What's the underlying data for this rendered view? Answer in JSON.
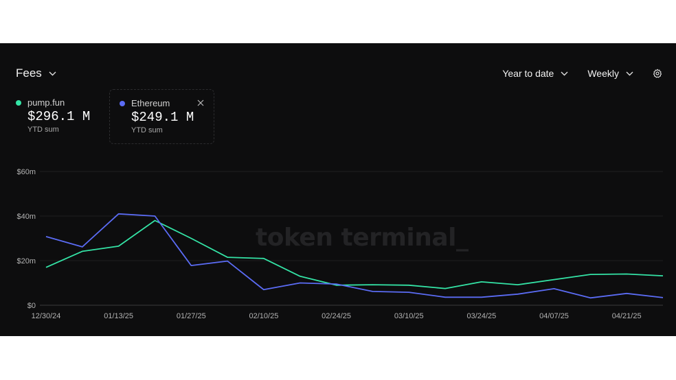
{
  "header": {
    "title": "Fees",
    "range_label": "Year to date",
    "interval_label": "Weekly"
  },
  "metrics": [
    {
      "name": "pump.fun",
      "value": "$296.1 M",
      "caption": "YTD sum",
      "color": "#34e4a6"
    },
    {
      "name": "Ethereum",
      "value": "$249.1 M",
      "caption": "YTD sum",
      "color": "#5b6cf5"
    }
  ],
  "watermark": "token terminal_",
  "icons": {
    "title_chevron": "chevron-down-icon",
    "settings": "gear-icon",
    "remove_series": "close-icon"
  },
  "chart_data": {
    "type": "line",
    "x": [
      "12/30/24",
      "01/06/25",
      "01/13/25",
      "01/20/25",
      "01/27/25",
      "02/03/25",
      "02/10/25",
      "02/17/25",
      "02/24/25",
      "03/03/25",
      "03/10/25",
      "03/17/25",
      "03/24/25",
      "03/31/25",
      "04/07/25",
      "04/14/25",
      "04/21/25",
      "04/28/25"
    ],
    "x_tick_labels": [
      "12/30/24",
      "01/13/25",
      "01/27/25",
      "02/10/25",
      "02/24/25",
      "03/10/25",
      "03/24/25",
      "04/07/25",
      "04/21/25"
    ],
    "y_tick_labels": [
      "$0",
      "$20m",
      "$40m",
      "$60m"
    ],
    "ylim": [
      0,
      60
    ],
    "grid": true,
    "series": [
      {
        "name": "pump.fun",
        "color": "#34e4a6",
        "values": [
          17,
          24.2,
          26.5,
          38,
          30,
          21.5,
          21,
          13,
          9,
          9.2,
          9,
          7.5,
          10.5,
          9.2,
          11.5,
          13.8,
          14,
          13.2
        ]
      },
      {
        "name": "Ethereum",
        "color": "#5b6cf5",
        "values": [
          30.8,
          26.2,
          41,
          40,
          17.8,
          19.8,
          7,
          10,
          9.5,
          6.2,
          5.8,
          3.6,
          3.6,
          5,
          7.4,
          3.3,
          5.3,
          3.4
        ]
      }
    ]
  }
}
